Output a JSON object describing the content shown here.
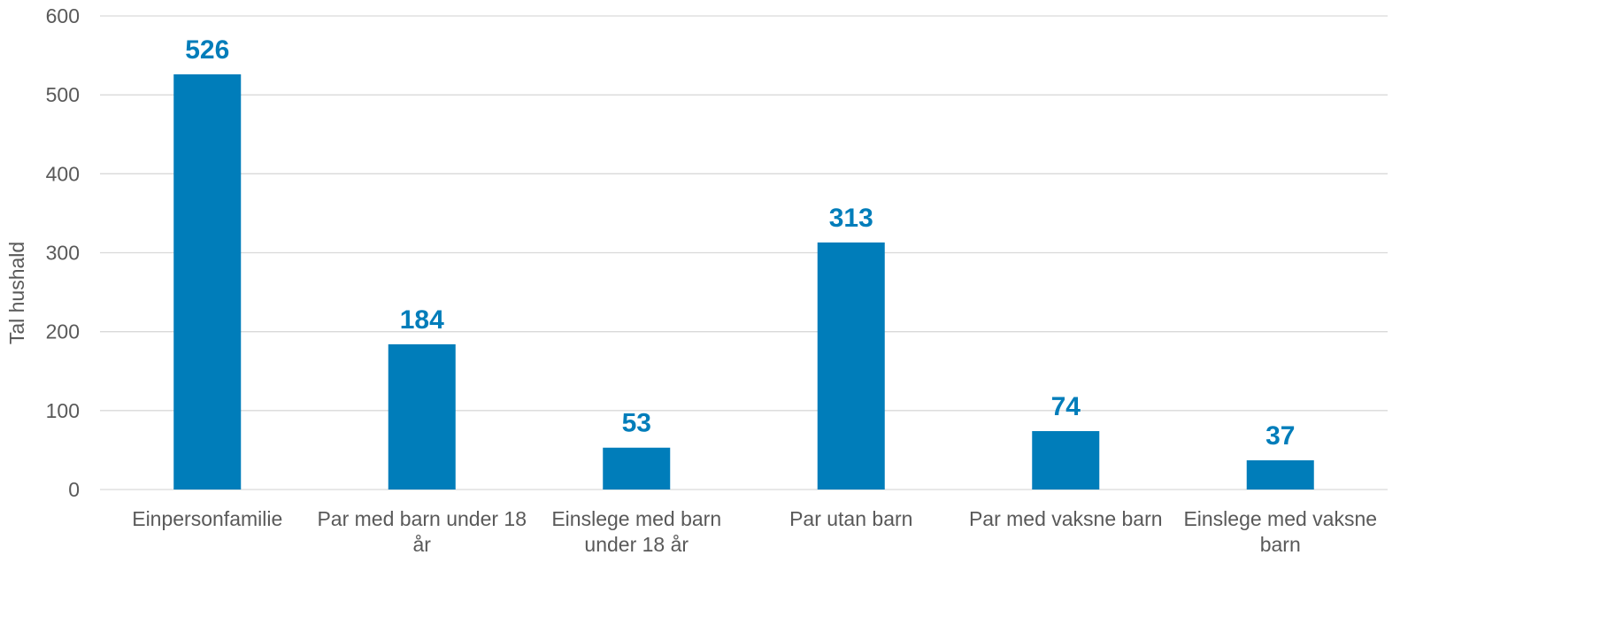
{
  "chart_data": {
    "type": "bar",
    "title": "",
    "xlabel": "",
    "ylabel": "Tal hushald",
    "ylim": [
      0,
      600
    ],
    "yticks": [
      0,
      100,
      200,
      300,
      400,
      500,
      600
    ],
    "grid": true,
    "legend": "none",
    "categories": [
      [
        "Einpersonfamilie"
      ],
      [
        "Par med barn under 18",
        "år"
      ],
      [
        "Einslege med barn",
        "under 18 år"
      ],
      [
        "Par utan barn"
      ],
      [
        "Par med vaksne barn"
      ],
      [
        "Einslege med vaksne",
        "barn"
      ]
    ],
    "series": [
      {
        "values": [
          526,
          184,
          53,
          313,
          74,
          37
        ]
      }
    ],
    "data_labels": [
      "526",
      "184",
      "53",
      "313",
      "74",
      "37"
    ],
    "colors": {
      "bar": "#007dba",
      "data_label": "#007dba",
      "grid": "#d9d9d9",
      "text": "#595959"
    }
  }
}
